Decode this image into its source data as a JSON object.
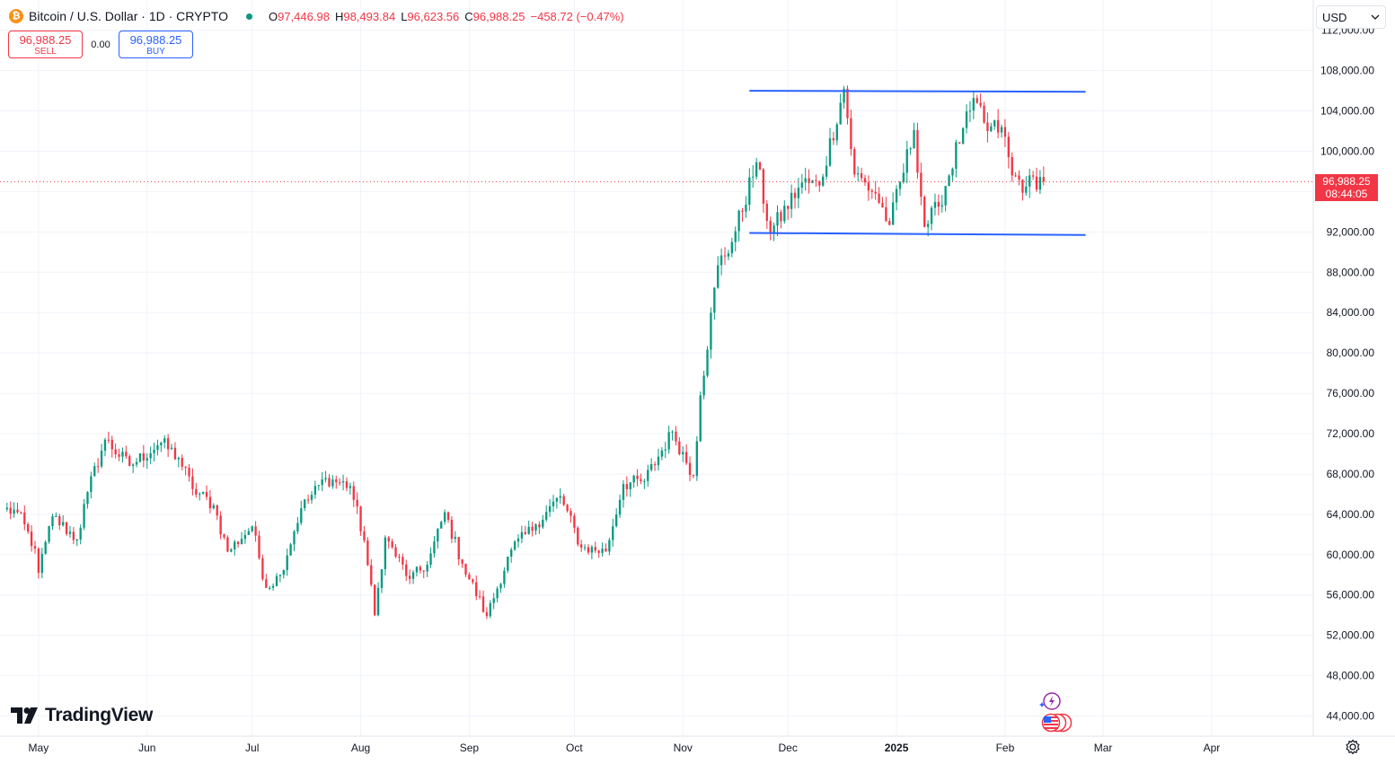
{
  "header": {
    "symbol_title": "Bitcoin / U.S. Dollar · 1D · CRYPTO",
    "coin_glyph": "₿",
    "ohlc": {
      "o_label": "O",
      "o_value": "97,446.98",
      "h_label": "H",
      "h_value": "98,493.84",
      "l_label": "L",
      "l_value": "96,623.56",
      "c_label": "C",
      "c_value": "96,988.25",
      "change": "−458.72 (−0.47%)"
    }
  },
  "trade": {
    "sell_price": "96,988.25",
    "sell_label": "SELL",
    "spread": "0.00",
    "buy_price": "96,988.25",
    "buy_label": "BUY"
  },
  "currency": {
    "selected": "USD"
  },
  "price_tag": {
    "price": "96,988.25",
    "countdown": "08:44:05"
  },
  "branding": {
    "logo_text": "TradingView"
  },
  "colors": {
    "up": "#089981",
    "down": "#f23645",
    "trendline": "#2962ff",
    "grid": "#f0f3fa"
  },
  "chart_data": {
    "type": "candlestick",
    "symbol": "BTCUSD",
    "interval": "1D",
    "x_axis": {
      "range": [
        "2024-04-20",
        "2025-04-30"
      ],
      "tick_labels": [
        {
          "label": "May",
          "date": "2024-05-01",
          "bold": false
        },
        {
          "label": "Jun",
          "date": "2024-06-01",
          "bold": false
        },
        {
          "label": "Jul",
          "date": "2024-07-01",
          "bold": false
        },
        {
          "label": "Aug",
          "date": "2024-08-01",
          "bold": false
        },
        {
          "label": "Sep",
          "date": "2024-09-01",
          "bold": false
        },
        {
          "label": "Oct",
          "date": "2024-10-01",
          "bold": false
        },
        {
          "label": "Nov",
          "date": "2024-11-01",
          "bold": false
        },
        {
          "label": "Dec",
          "date": "2024-12-01",
          "bold": false
        },
        {
          "label": "2025",
          "date": "2025-01-01",
          "bold": true
        },
        {
          "label": "Feb",
          "date": "2025-02-01",
          "bold": false
        },
        {
          "label": "Mar",
          "date": "2025-03-01",
          "bold": false
        },
        {
          "label": "Apr",
          "date": "2025-04-01",
          "bold": false
        }
      ]
    },
    "y_axis": {
      "range": [
        42000,
        115000
      ],
      "position": "right",
      "tick_labels": [
        "112,000.00",
        "108,000.00",
        "104,000.00",
        "100,000.00",
        "96,000.00",
        "92,000.00",
        "88,000.00",
        "84,000.00",
        "80,000.00",
        "76,000.00",
        "72,000.00",
        "68,000.00",
        "64,000.00",
        "60,000.00",
        "56,000.00",
        "52,000.00",
        "48,000.00",
        "44,000.00"
      ],
      "tick_values": [
        112000,
        108000,
        104000,
        100000,
        96000,
        92000,
        88000,
        84000,
        80000,
        76000,
        72000,
        68000,
        64000,
        60000,
        56000,
        52000,
        48000,
        44000
      ]
    },
    "grid": true,
    "last_price": 96988.25,
    "trendlines": [
      {
        "name": "resistance",
        "start": {
          "date": "2024-11-20",
          "price": 106000
        },
        "end": {
          "date": "2025-02-24",
          "price": 105900
        }
      },
      {
        "name": "support",
        "start": {
          "date": "2024-11-20",
          "price": 91900
        },
        "end": {
          "date": "2025-02-24",
          "price": 91700
        }
      }
    ],
    "anchors": [
      {
        "date": "2024-04-21",
        "close": 64500
      },
      {
        "date": "2024-04-25",
        "close": 64200
      },
      {
        "date": "2024-04-30",
        "close": 60600
      },
      {
        "date": "2024-05-01",
        "close": 58200
      },
      {
        "date": "2024-05-05",
        "close": 63800
      },
      {
        "date": "2024-05-12",
        "close": 61500
      },
      {
        "date": "2024-05-15",
        "close": 66200
      },
      {
        "date": "2024-05-20",
        "close": 71400
      },
      {
        "date": "2024-05-27",
        "close": 68800
      },
      {
        "date": "2024-06-05",
        "close": 71100
      },
      {
        "date": "2024-06-10",
        "close": 69600
      },
      {
        "date": "2024-06-14",
        "close": 66500
      },
      {
        "date": "2024-06-20",
        "close": 64900
      },
      {
        "date": "2024-06-24",
        "close": 60300
      },
      {
        "date": "2024-07-01",
        "close": 62800
      },
      {
        "date": "2024-07-05",
        "close": 56700
      },
      {
        "date": "2024-07-09",
        "close": 58000
      },
      {
        "date": "2024-07-15",
        "close": 64600
      },
      {
        "date": "2024-07-22",
        "close": 67600
      },
      {
        "date": "2024-07-29",
        "close": 66800
      },
      {
        "date": "2024-08-02",
        "close": 61400
      },
      {
        "date": "2024-08-05",
        "close": 54000
      },
      {
        "date": "2024-08-08",
        "close": 61700
      },
      {
        "date": "2024-08-15",
        "close": 57600
      },
      {
        "date": "2024-08-20",
        "close": 59000
      },
      {
        "date": "2024-08-25",
        "close": 64200
      },
      {
        "date": "2024-08-30",
        "close": 59100
      },
      {
        "date": "2024-09-06",
        "close": 53900
      },
      {
        "date": "2024-09-13",
        "close": 60500
      },
      {
        "date": "2024-09-20",
        "close": 63000
      },
      {
        "date": "2024-09-27",
        "close": 65800
      },
      {
        "date": "2024-10-03",
        "close": 60700
      },
      {
        "date": "2024-10-10",
        "close": 60300
      },
      {
        "date": "2024-10-15",
        "close": 67000
      },
      {
        "date": "2024-10-21",
        "close": 67300
      },
      {
        "date": "2024-10-29",
        "close": 72200
      },
      {
        "date": "2024-11-04",
        "close": 67800
      },
      {
        "date": "2024-11-06",
        "close": 75800
      },
      {
        "date": "2024-11-11",
        "close": 88700
      },
      {
        "date": "2024-11-15",
        "close": 91000
      },
      {
        "date": "2024-11-22",
        "close": 98900
      },
      {
        "date": "2024-11-26",
        "close": 91900
      },
      {
        "date": "2024-12-05",
        "close": 96900
      },
      {
        "date": "2024-12-10",
        "close": 96600
      },
      {
        "date": "2024-12-17",
        "close": 106200
      },
      {
        "date": "2024-12-20",
        "close": 97700
      },
      {
        "date": "2024-12-26",
        "close": 95800
      },
      {
        "date": "2024-12-30",
        "close": 92700
      },
      {
        "date": "2025-01-06",
        "close": 102100
      },
      {
        "date": "2025-01-09",
        "close": 92500
      },
      {
        "date": "2025-01-13",
        "close": 94500
      },
      {
        "date": "2025-01-20",
        "close": 102300
      },
      {
        "date": "2025-01-24",
        "close": 104800
      },
      {
        "date": "2025-01-27",
        "close": 102000
      },
      {
        "date": "2025-01-31",
        "close": 102400
      },
      {
        "date": "2025-02-03",
        "close": 97600
      },
      {
        "date": "2025-02-07",
        "close": 96500
      },
      {
        "date": "2025-02-11",
        "close": 97446.98
      }
    ],
    "last_bar": {
      "date": "2025-02-12",
      "open": 97446.98,
      "high": 98493.84,
      "low": 96623.56,
      "close": 96988.25
    }
  }
}
